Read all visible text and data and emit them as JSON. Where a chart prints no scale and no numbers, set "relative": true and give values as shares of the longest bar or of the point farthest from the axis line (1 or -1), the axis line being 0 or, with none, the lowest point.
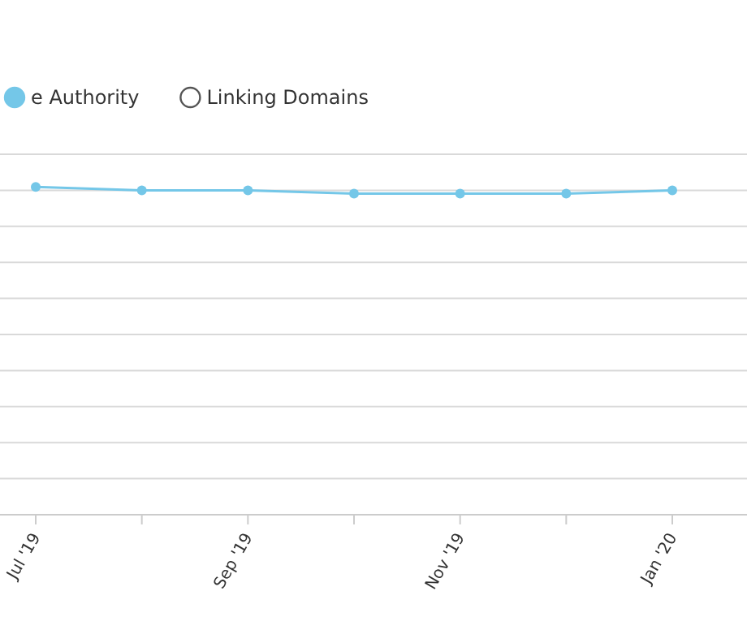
{
  "chart_data": {
    "type": "line",
    "relative": true,
    "categories": [
      "Jul '19",
      null,
      "Sep '19",
      null,
      "Nov '19",
      null,
      "Jan '20"
    ],
    "series": [
      {
        "name": "e Authority",
        "color": "#74c7e8",
        "values": [
          1,
          0.99,
          0.99,
          0.98,
          0.98,
          0.98,
          0.99
        ]
      },
      {
        "name": "Linking Domains",
        "color": "#555555",
        "values": [
          null,
          null,
          null,
          null,
          null,
          null,
          null
        ]
      }
    ],
    "marker": "circle",
    "grid": "y",
    "legend": "top left"
  }
}
